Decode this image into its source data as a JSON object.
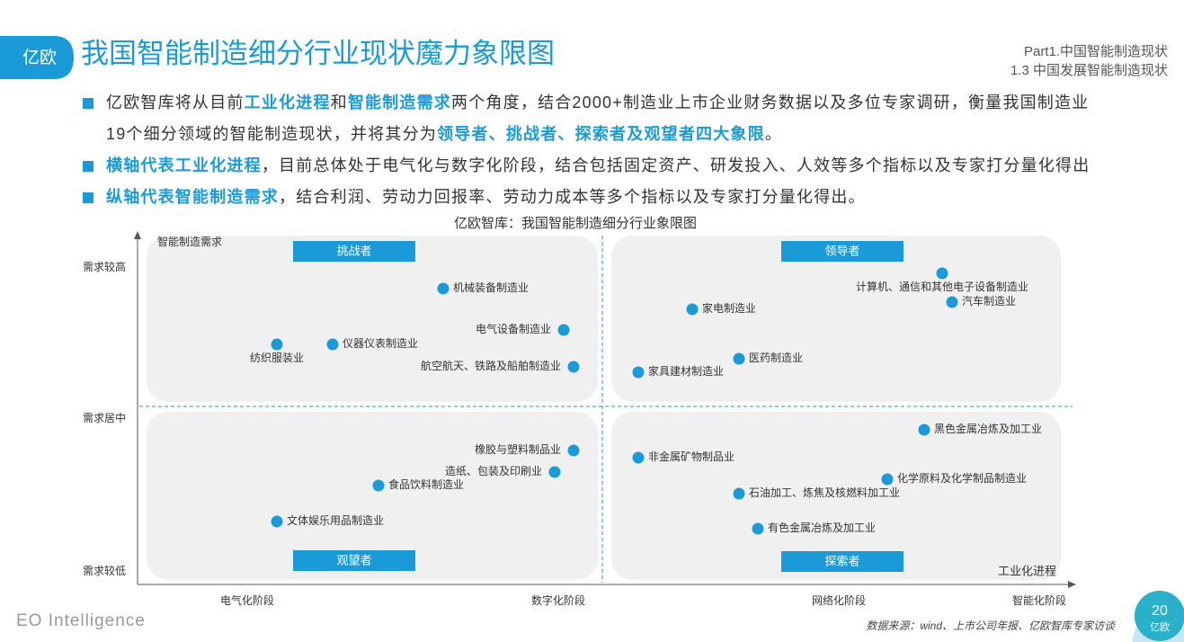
{
  "header": {
    "logo": "亿欧",
    "title": "我国智能制造细分行业现状魔力象限图",
    "section": "Part1.中国智能制造现状",
    "subsection": "1.3 中国发展智能制造现状"
  },
  "bullets": [
    [
      {
        "text": "亿欧智库将从目前",
        "bold": false
      },
      {
        "text": "工业化进程",
        "bold": true
      },
      {
        "text": "和",
        "bold": false
      },
      {
        "text": "智能制造需求",
        "bold": true
      },
      {
        "text": "两个角度，结合2000+制造业上市企业财务数据以及多位专家调研，衡量我国制造业19个细分领域的智能制造现状，并将其分为",
        "bold": false
      },
      {
        "text": "领导者、挑战者、探索者及观望者四大象限",
        "bold": true
      },
      {
        "text": "。",
        "bold": false
      }
    ],
    [
      {
        "text": "横轴代表工业化进程",
        "bold": true
      },
      {
        "text": "，目前总体处于电气化与数字化阶段，结合包括固定资产、研发投入、人效等多个指标以及专家打分量化得出",
        "bold": false
      }
    ],
    [
      {
        "text": "纵轴代表智能制造需求",
        "bold": true
      },
      {
        "text": "，结合利润、劳动力回报率、劳动力成本等多个指标以及专家打分量化得出。",
        "bold": false
      }
    ]
  ],
  "diagram": {
    "title": "亿欧智库：我国智能制造细分行业象限图",
    "y_axis_label": "智能制造需求",
    "x_axis_label": "工业化进程",
    "y_levels": [
      "需求较高",
      "需求居中",
      "需求较低"
    ],
    "x_stages": [
      "电气化阶段",
      "数字化阶段",
      "网络化阶段",
      "智能化阶段"
    ],
    "quadrants": [
      "挑战者",
      "领导者",
      "观望者",
      "探索者"
    ],
    "nodes": [
      {
        "label": "机械装备制造业"
      },
      {
        "label": "电气设备制造业"
      },
      {
        "label": "纺织服装业"
      },
      {
        "label": "仪器仪表制造业"
      },
      {
        "label": "航空航天、铁路及船舶制造业"
      },
      {
        "label": "计算机、通信和其他电子设备制造业"
      },
      {
        "label": "汽车制造业"
      },
      {
        "label": "家电制造业"
      },
      {
        "label": "医药制造业"
      },
      {
        "label": "家具建材制造业"
      },
      {
        "label": "黑色金属冶炼及加工业"
      },
      {
        "label": "非金属矿物制品业"
      },
      {
        "label": "化学原料及化学制品制造业"
      },
      {
        "label": "石油加工、炼焦及核燃料加工业"
      },
      {
        "label": "有色金属冶炼及加工业"
      },
      {
        "label": "橡胶与塑料制品业"
      },
      {
        "label": "造纸、包装及印刷业"
      },
      {
        "label": "食品饮料制造业"
      },
      {
        "label": "文体娱乐用品制造业"
      }
    ]
  },
  "footer": {
    "brand": "EO Intelligence",
    "source": "数据来源：wind、上市公司年报、亿欧智库专家访谈",
    "page": "20"
  }
}
